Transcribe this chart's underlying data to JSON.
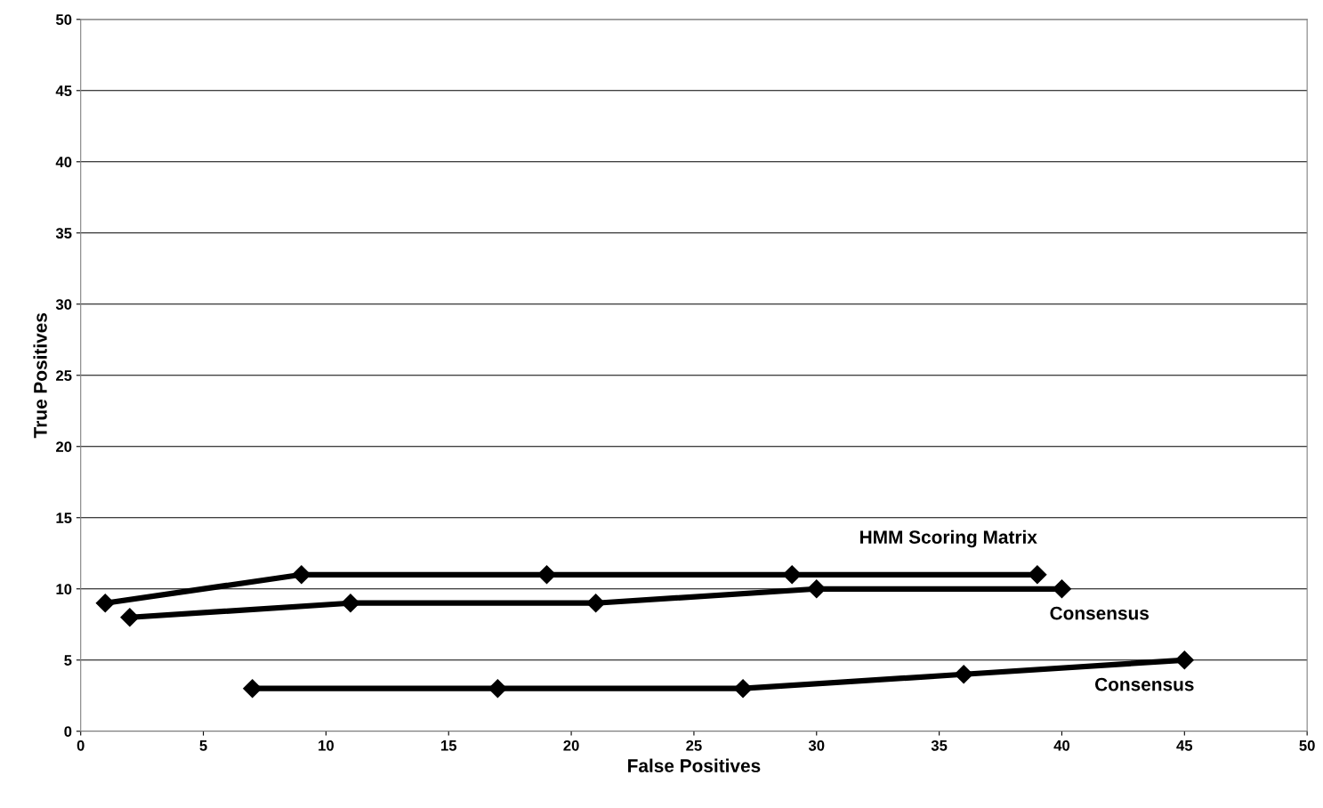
{
  "chart_data": {
    "type": "line",
    "xlabel": "False Positives",
    "ylabel": "True Positives",
    "xlim": [
      0,
      50
    ],
    "xticks": [
      0,
      5,
      10,
      15,
      20,
      25,
      30,
      35,
      40,
      45,
      50
    ],
    "ylim": [
      0,
      50
    ],
    "yticks": [
      0,
      5,
      10,
      15,
      20,
      25,
      30,
      35,
      40,
      45,
      50
    ],
    "grid": "y",
    "legend": false,
    "marker": "diamond",
    "line_style": "solid",
    "series": [
      {
        "name": "HMM Scoring Matrix",
        "color": "#000000",
        "x": [
          1,
          9,
          19,
          29,
          39
        ],
        "values": [
          9,
          11,
          11,
          11,
          11
        ]
      },
      {
        "name": "Consensus",
        "color": "#000000",
        "x": [
          2,
          11,
          21,
          30,
          40
        ],
        "values": [
          8,
          9,
          9,
          10,
          10
        ]
      },
      {
        "name": "Consensus",
        "color": "#000000",
        "x": [
          7,
          17,
          27,
          36,
          45
        ],
        "values": [
          3,
          3,
          3,
          4,
          5
        ]
      }
    ]
  }
}
